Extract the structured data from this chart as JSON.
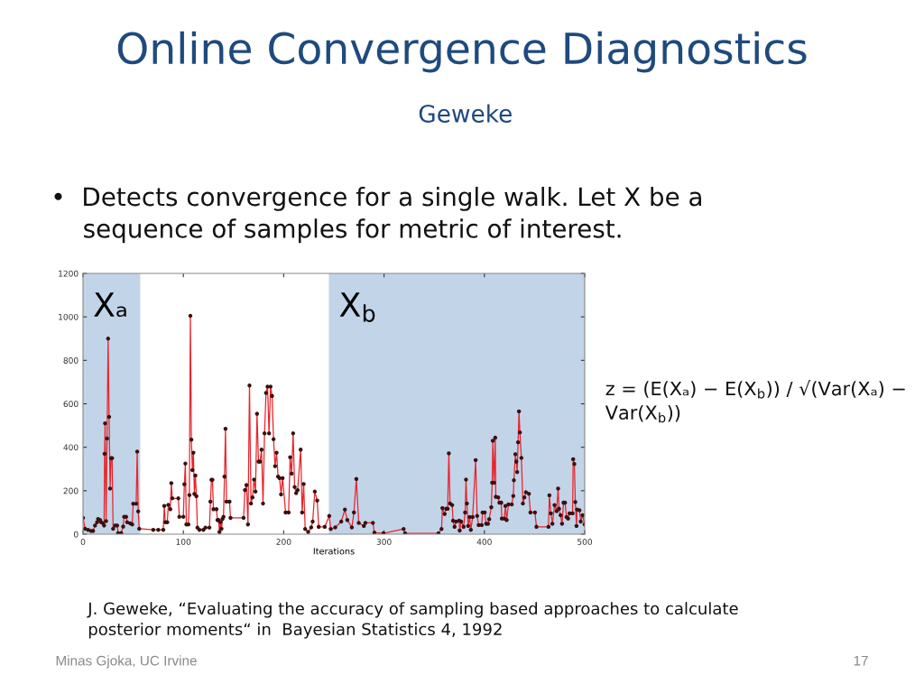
{
  "chart_data": {
    "type": "line",
    "title": "Online Convergence Diagnostics",
    "subtitle": "Geweke",
    "xlabel": "Iterations",
    "annotations": [
      "•  Detects convergence for a single walk. Let X be a\n    sequence of samples for metric of interest.",
      "z = (E(Xₐ) − E(X$_{b}$)) / √(Var(Xₐ) − Var(X$_{b}$))",
      "J. Geweke, “Evaluating the accuracy of sampling based approaches to calculate\nposterior moments“ in  Bayesian Statistics 4, 1992",
      "Minas Gjoka, UC Irvine",
      "17"
    ],
    "series": [
      {
        "color": "#e8242c",
        "x": [
          0,
          2,
          5,
          8,
          10,
          12,
          14,
          15,
          17,
          18,
          20,
          21,
          21.5,
          22,
          23,
          24,
          25,
          26,
          27,
          28,
          29,
          30,
          32,
          34,
          35,
          38,
          40,
          41,
          43,
          44,
          47,
          49,
          50,
          53,
          54,
          55,
          56,
          70,
          75,
          80,
          81,
          82,
          84,
          85,
          87,
          88,
          89,
          95,
          96,
          100,
          101,
          102,
          103,
          105,
          106,
          107,
          108,
          109,
          110,
          111,
          112,
          113,
          114,
          116,
          120,
          122,
          126,
          127,
          128,
          129,
          130,
          133,
          134,
          135,
          136,
          137,
          138,
          139,
          140,
          141,
          142,
          143,
          146,
          147,
          160,
          161.4,
          162.9,
          164.4,
          165.9,
          167.4,
          168.9,
          170.4,
          171.9,
          173.4,
          174.9,
          176.4,
          177.9,
          179.4,
          180.9,
          182.4,
          183.9,
          185.4,
          186.9,
          188.4,
          189.9,
          191.4,
          192.9,
          194.4,
          195.9,
          197.4,
          198.9,
          201.9,
          204.9,
          206.4,
          207.9,
          209.4,
          210.9,
          212.4,
          213.9,
          216.9,
          218.4,
          219.9,
          221.4,
          224.4,
          227.4,
          228.9,
          231,
          233.4,
          234.9,
          240.9,
          245.4,
          246.9,
          251.4,
          257.4,
          261,
          263.4,
          267.9,
          270,
          272.4,
          274.8,
          279.9,
          281.4,
          288.9,
          290.4,
          299.4,
          319.5,
          321,
          354.2,
          357.3,
          358.2,
          360.4,
          361.9,
          363.4,
          364.6,
          365.8,
          367.9,
          368.8,
          370.3,
          371.8,
          374.8,
          375.4,
          376.9,
          379.3,
          380.8,
          381.7,
          382.6,
          383.8,
          385.3,
          386.5,
          388.3,
          391.3,
          392.8,
          394.3,
          397.3,
          398.2,
          400.3,
          401.8,
          403.6,
          404.8,
          406.9,
          407.8,
          408.4,
          409.6,
          410.8,
          411.4,
          413.8,
          415,
          416.8,
          417.4,
          419.8,
          421,
          422.2,
          424,
          427.3,
          428.8,
          429.4,
          430.9,
          431.8,
          432.7,
          433.6,
          434.5,
          435.4,
          436.9,
          438.4,
          439.9,
          441.4,
          444.4,
          445.9,
          450.4,
          451.9,
          463.9,
          464.8,
          466.3,
          467.8,
          469.9,
          472,
          473.5,
          474.4,
          475.9,
          477.4,
          478.9,
          480.4,
          481.9,
          483.4,
          484.9,
          487.9,
          488.5,
          489.7,
          490.6,
          491.8,
          492.4,
          494.8,
          496,
          497.8,
          499.9
        ],
        "values": [
          75,
          25,
          20,
          15,
          15,
          40,
          55,
          70,
          65,
          55,
          50,
          40,
          370,
          510,
          60,
          440,
          900,
          540,
          210,
          350,
          350,
          25,
          40,
          40,
          5,
          5,
          35,
          80,
          80,
          55,
          50,
          45,
          140,
          140,
          380,
          105,
          25,
          20,
          20,
          20,
          130,
          55,
          55,
          135,
          115,
          235,
          165,
          165,
          80,
          80,
          230,
          325,
          45,
          45,
          180,
          1005,
          435,
          295,
          375,
          185,
          270,
          175,
          30,
          20,
          20,
          30,
          30,
          150,
          250,
          250,
          115,
          115,
          65,
          65,
          10,
          55,
          25,
          70,
          80,
          265,
          485,
          150,
          150,
          75,
          75,
          203,
          226,
          45,
          684,
          141,
          169,
          251,
          196,
          554,
          334,
          334,
          389,
          141,
          464,
          650,
          679,
          464,
          679,
          636,
          437,
          313,
          375,
          265,
          258,
          183,
          258,
          100,
          100,
          354,
          279,
          464,
          217,
          189,
          203,
          389,
          100,
          231,
          24,
          10,
          31,
          58,
          196,
          155,
          34,
          34,
          84,
          24,
          31,
          58,
          113,
          65,
          31,
          100,
          254,
          52,
          38,
          52,
          52,
          7,
          4,
          24,
          4,
          4,
          24,
          120,
          93,
          117,
          117,
          372,
          141,
          134,
          62,
          34,
          58,
          62,
          17,
          58,
          34,
          100,
          251,
          141,
          38,
          79,
          20,
          79,
          341,
          84,
          42,
          42,
          100,
          100,
          48,
          48,
          69,
          124,
          237,
          430,
          237,
          444,
          172,
          169,
          145,
          145,
          72,
          72,
          130,
          65,
          137,
          137,
          176,
          248,
          368,
          334,
          286,
          423,
          565,
          468,
          351,
          141,
          169,
          193,
          186,
          100,
          100,
          34,
          34,
          179,
          96,
          48,
          134,
          106,
          210,
          117,
          87,
          48,
          145,
          145,
          79,
          72,
          96,
          96,
          345,
          323,
          148,
          38,
          113,
          110,
          58,
          87,
          45
        ]
      }
    ],
    "marker": "circle",
    "line_style": "solid",
    "xlim": [
      0,
      500
    ],
    "xticks": [
      0,
      100,
      200,
      300,
      400,
      500
    ],
    "ylim": [
      0,
      1200
    ],
    "yticks": [
      0,
      200,
      400,
      600,
      800,
      1000,
      1200
    ],
    "grid": false,
    "legend": false,
    "bands": [
      {
        "axis": "x",
        "from": 0,
        "to": 57,
        "label": "Xₐ",
        "color": "#c2d4e8"
      },
      {
        "axis": "x",
        "from": 245,
        "to": 500,
        "label": "X$_{b}$",
        "color": "#c2d4e8"
      }
    ]
  }
}
